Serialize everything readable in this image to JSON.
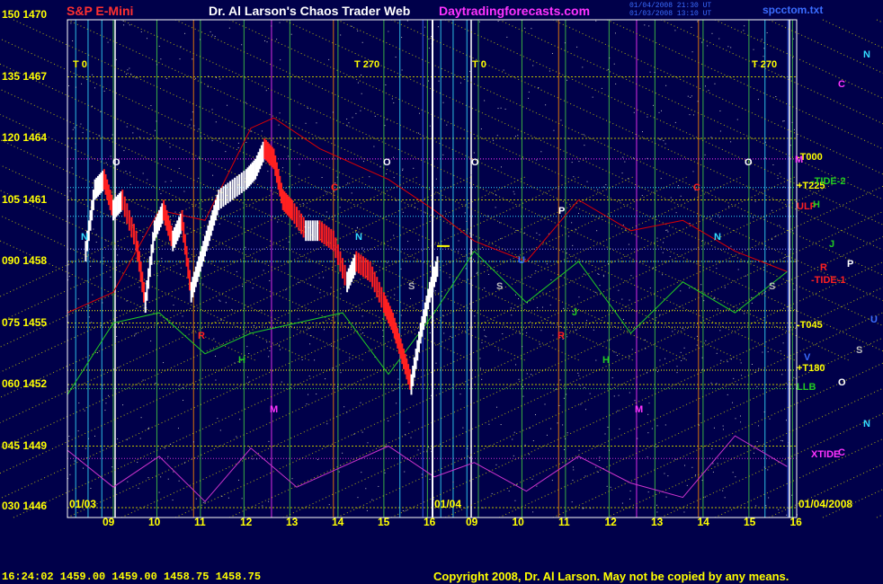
{
  "header": {
    "symbol": "S&P E-Mini",
    "title": "Dr. Al Larson's Chaos Trader Web",
    "site": "Daytradingforecasts.com",
    "stamp_line1": "01/04/2008 21:30 UT",
    "stamp_line2": "01/03/2008 13:10 UT",
    "filename": "spcctom.txt"
  },
  "footer": {
    "quote": "16:24:02  1459.00  1459.00  1458.75  1458.75",
    "copyright": "Copyright 2008, Dr. Al Larson. May not be copied by any means."
  },
  "colors": {
    "background": "#00004a",
    "frame": "#ffffff",
    "price_up": "#ffffff",
    "price_down": "#ff2020",
    "red_flux": "#dd0000",
    "green_flux": "#22cc22",
    "magenta_xtide": "#cc33cc",
    "yellow_grid": "#dddd00",
    "axis_text": "#ffff00"
  },
  "chart_data": {
    "type": "line",
    "title": "S&P E-Mini",
    "y_axis_labels": [
      {
        "flux": "150",
        "price": "1470"
      },
      {
        "flux": "135",
        "price": "1467"
      },
      {
        "flux": "120",
        "price": "1464"
      },
      {
        "flux": "105",
        "price": "1461"
      },
      {
        "flux": "090",
        "price": "1458"
      },
      {
        "flux": "075",
        "price": "1455"
      },
      {
        "flux": "060",
        "price": "1452"
      },
      {
        "flux": "045",
        "price": "1449"
      },
      {
        "flux": "030",
        "price": "1446"
      }
    ],
    "ylim": [
      1446,
      1470
    ],
    "x_ticks_day1": [
      "09",
      "10",
      "11",
      "12",
      "13",
      "14",
      "15",
      "16"
    ],
    "x_ticks_day2": [
      "09",
      "10",
      "11",
      "12",
      "13",
      "14",
      "15",
      "16"
    ],
    "date_left": "01/03",
    "date_mid": "01/04",
    "date_right": "01/04/2008",
    "time_markers": [
      "T 0",
      "T 270",
      "T 0",
      "T 270"
    ],
    "right_labels": [
      {
        "text": "-T000",
        "price": 1463.0
      },
      {
        "text": "+T225",
        "price": 1461.6
      },
      {
        "text": "ULP",
        "price": 1460.6
      },
      {
        "text": "-TIDE-2",
        "price": 1461.8
      },
      {
        "text": "-TIDE-1",
        "price": 1457.0
      },
      {
        "text": "-T045",
        "price": 1454.8
      },
      {
        "text": "+T180",
        "price": 1452.7
      },
      {
        "text": "LLB",
        "price": 1451.8
      },
      {
        "text": "XTIDE",
        "price": 1448.5
      }
    ],
    "planet_labels": [
      "N",
      "C",
      "M",
      "H",
      "J",
      "R",
      "P",
      "U",
      "S",
      "O",
      "V"
    ],
    "price_series_day1": [
      {
        "hour": 8.4,
        "close": 1458.5
      },
      {
        "hour": 8.6,
        "close": 1461.5
      },
      {
        "hour": 8.8,
        "close": 1462.0
      },
      {
        "hour": 9.0,
        "close": 1460.5
      },
      {
        "hour": 9.2,
        "close": 1461.0
      },
      {
        "hour": 9.5,
        "close": 1459.0
      },
      {
        "hour": 9.7,
        "close": 1456.0
      },
      {
        "hour": 9.9,
        "close": 1459.5
      },
      {
        "hour": 10.1,
        "close": 1460.5
      },
      {
        "hour": 10.3,
        "close": 1459.0
      },
      {
        "hour": 10.5,
        "close": 1460.0
      },
      {
        "hour": 10.7,
        "close": 1456.5
      },
      {
        "hour": 10.9,
        "close": 1458.0
      },
      {
        "hour": 11.1,
        "close": 1459.5
      },
      {
        "hour": 11.3,
        "close": 1461.0
      },
      {
        "hour": 11.6,
        "close": 1461.5
      },
      {
        "hour": 11.9,
        "close": 1462.0
      },
      {
        "hour": 12.1,
        "close": 1462.5
      },
      {
        "hour": 12.3,
        "close": 1463.5
      },
      {
        "hour": 12.5,
        "close": 1463.0
      },
      {
        "hour": 12.7,
        "close": 1461.0
      },
      {
        "hour": 12.9,
        "close": 1460.5
      },
      {
        "hour": 13.2,
        "close": 1459.5
      },
      {
        "hour": 13.5,
        "close": 1459.5
      },
      {
        "hour": 13.8,
        "close": 1459.0
      },
      {
        "hour": 14.1,
        "close": 1457.0
      },
      {
        "hour": 14.3,
        "close": 1458.0
      },
      {
        "hour": 14.6,
        "close": 1457.5
      },
      {
        "hour": 14.9,
        "close": 1456.0
      },
      {
        "hour": 15.1,
        "close": 1455.0
      },
      {
        "hour": 15.3,
        "close": 1453.5
      },
      {
        "hour": 15.5,
        "close": 1452.0
      },
      {
        "hour": 15.7,
        "close": 1454.5
      },
      {
        "hour": 15.9,
        "close": 1456.5
      },
      {
        "hour": 16.1,
        "close": 1458.0
      }
    ],
    "red_flux_series": [
      {
        "hour": 8.0,
        "value": 1455.5
      },
      {
        "hour": 9.0,
        "value": 1456.5
      },
      {
        "hour": 10.0,
        "value": 1460.5
      },
      {
        "hour": 11.0,
        "value": 1460.0
      },
      {
        "hour": 12.0,
        "value": 1464.5
      },
      {
        "hour": 12.5,
        "value": 1465.0
      },
      {
        "hour": 13.5,
        "value": 1463.5
      },
      {
        "hour": 14.5,
        "value": 1462.5
      },
      {
        "hour": 15.0,
        "value": 1462.0
      },
      {
        "hour": 16.0,
        "value": 1460.5
      },
      {
        "hour": 17.0,
        "value": 1459.0
      },
      {
        "hour": 18.0,
        "value": 1458.0
      },
      {
        "hour": 19.0,
        "value": 1461.0
      },
      {
        "hour": 20.0,
        "value": 1459.5
      },
      {
        "hour": 21.0,
        "value": 1460.0
      },
      {
        "hour": 22.0,
        "value": 1458.5
      },
      {
        "hour": 23.0,
        "value": 1457.5
      }
    ],
    "green_flux_series": [
      {
        "hour": 8.0,
        "value": 1451.5
      },
      {
        "hour": 9.0,
        "value": 1455.0
      },
      {
        "hour": 10.0,
        "value": 1455.5
      },
      {
        "hour": 11.0,
        "value": 1453.5
      },
      {
        "hour": 12.0,
        "value": 1454.5
      },
      {
        "hour": 13.0,
        "value": 1455.0
      },
      {
        "hour": 14.0,
        "value": 1455.5
      },
      {
        "hour": 15.0,
        "value": 1452.5
      },
      {
        "hour": 16.0,
        "value": 1455.5
      },
      {
        "hour": 17.0,
        "value": 1458.5
      },
      {
        "hour": 18.0,
        "value": 1456.0
      },
      {
        "hour": 19.0,
        "value": 1458.0
      },
      {
        "hour": 20.0,
        "value": 1454.5
      },
      {
        "hour": 21.0,
        "value": 1457.0
      },
      {
        "hour": 22.0,
        "value": 1455.5
      },
      {
        "hour": 23.0,
        "value": 1457.5
      }
    ],
    "xtide_series": [
      {
        "hour": 8.0,
        "value": 1448.8
      },
      {
        "hour": 9.0,
        "value": 1447.0
      },
      {
        "hour": 10.0,
        "value": 1448.5
      },
      {
        "hour": 11.0,
        "value": 1446.3
      },
      {
        "hour": 12.0,
        "value": 1448.9
      },
      {
        "hour": 13.0,
        "value": 1447.0
      },
      {
        "hour": 14.0,
        "value": 1448.0
      },
      {
        "hour": 15.0,
        "value": 1449.0
      },
      {
        "hour": 16.0,
        "value": 1447.5
      },
      {
        "hour": 17.0,
        "value": 1448.2
      },
      {
        "hour": 18.0,
        "value": 1446.8
      },
      {
        "hour": 19.0,
        "value": 1448.5
      },
      {
        "hour": 20.0,
        "value": 1447.2
      },
      {
        "hour": 21.0,
        "value": 1446.5
      },
      {
        "hour": 22.0,
        "value": 1449.5
      },
      {
        "hour": 23.0,
        "value": 1448.0
      }
    ],
    "grid": true,
    "legend_position": "right"
  }
}
